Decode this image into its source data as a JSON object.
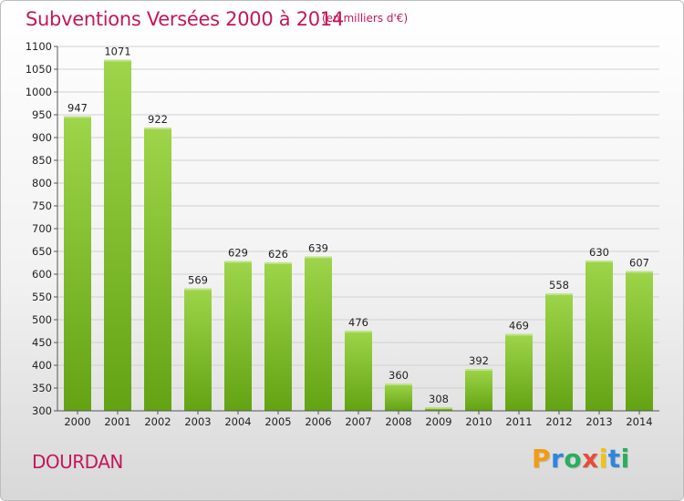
{
  "header": {
    "title": "Subventions Versées 2000 à 2014",
    "unit": "(en milliers d'€)"
  },
  "footer": {
    "commune": "DOURDAN",
    "logo": "Proxiti",
    "logo_colors": [
      "#f39c12",
      "#2e86de",
      "#27ae60",
      "#e74c3c",
      "#f1c40f",
      "#2e86de",
      "#27ae60"
    ]
  },
  "colors": {
    "bar_light": "#9ed54a",
    "bar_dark": "#63a313",
    "title": "#c2185b",
    "grid": "#d0d0d0",
    "axis_text": "#222222"
  },
  "chart_data": {
    "type": "bar",
    "title": "Subventions Versées 2000 à 2014",
    "xlabel": "",
    "ylabel": "",
    "categories": [
      "2000",
      "2001",
      "2002",
      "2003",
      "2004",
      "2005",
      "2006",
      "2007",
      "2008",
      "2009",
      "2010",
      "2011",
      "2012",
      "2013",
      "2014"
    ],
    "values": [
      947,
      1071,
      922,
      569,
      629,
      626,
      639,
      476,
      360,
      308,
      392,
      469,
      558,
      630,
      607
    ],
    "ylim": [
      300,
      1100
    ],
    "yticks": [
      300,
      350,
      400,
      450,
      500,
      550,
      600,
      650,
      700,
      750,
      800,
      850,
      900,
      950,
      1000,
      1050,
      1100
    ],
    "grid": true,
    "data_labels": true
  }
}
